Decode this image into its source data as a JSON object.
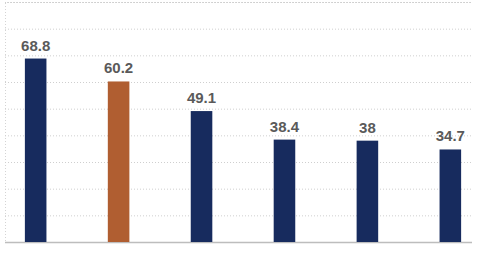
{
  "chart_data": {
    "type": "bar",
    "categories": [
      null,
      null,
      null,
      null,
      null,
      null
    ],
    "values": [
      68.8,
      60.2,
      49.1,
      38.4,
      38.0,
      34.7
    ],
    "colors": [
      "#172b5e",
      "#b05e31",
      "#172b5e",
      "#172b5e",
      "#172b5e",
      "#172b5e"
    ],
    "ylim": [
      0,
      90
    ],
    "yticks": [
      0,
      10,
      20,
      30,
      40,
      50,
      60,
      70,
      80,
      90
    ],
    "grid": true,
    "data_labels": true,
    "tick_labels": false
  }
}
